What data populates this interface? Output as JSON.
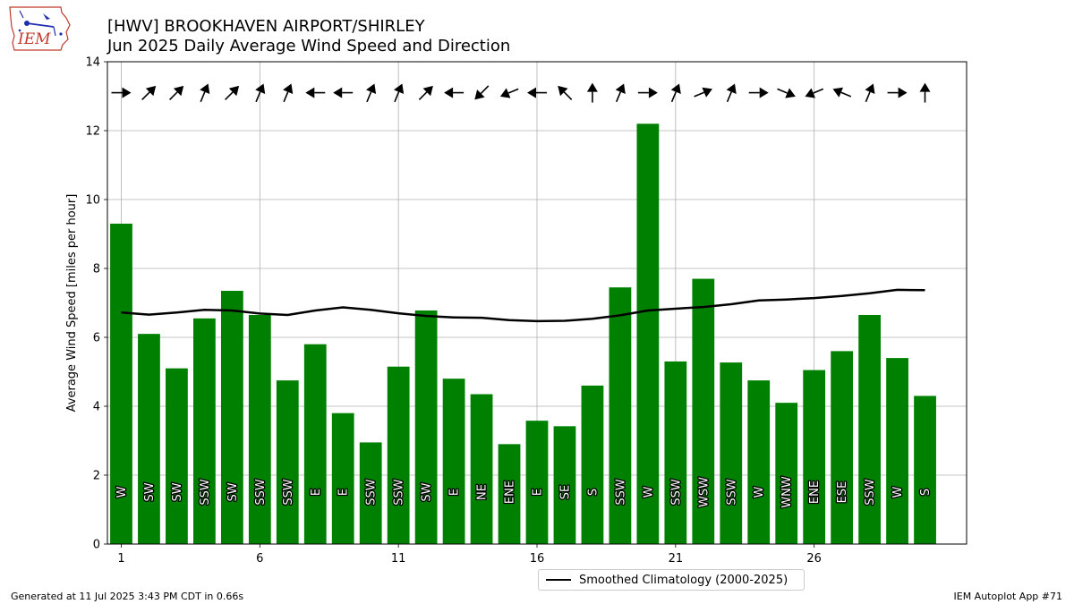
{
  "logo": {
    "text": "IEM"
  },
  "footer": {
    "generated": "Generated at 11 Jul 2025 3:43 PM CDT in 0.66s",
    "app": "IEM Autoplot App #71"
  },
  "chart_data": {
    "type": "bar",
    "title": "[HWV] BROOKHAVEN AIRPORT/SHIRLEY",
    "subtitle": "Jun 2025 Daily Average Wind Speed and Direction",
    "xlabel": "",
    "ylabel": "Average Wind Speed [miles per hour]",
    "xlim": [
      0.5,
      31.5
    ],
    "ylim": [
      0,
      14
    ],
    "x_ticks": [
      1,
      6,
      11,
      16,
      21,
      26
    ],
    "y_ticks": [
      0,
      2,
      4,
      6,
      8,
      10,
      12,
      14
    ],
    "grid": true,
    "legend_position": "bottom-center",
    "bar_color": "#008000",
    "days": [
      1,
      2,
      3,
      4,
      5,
      6,
      7,
      8,
      9,
      10,
      11,
      12,
      13,
      14,
      15,
      16,
      17,
      18,
      19,
      20,
      21,
      22,
      23,
      24,
      25,
      26,
      27,
      28,
      29,
      30
    ],
    "values": [
      9.3,
      6.1,
      5.1,
      6.55,
      7.35,
      6.65,
      4.75,
      5.8,
      3.8,
      2.95,
      5.15,
      6.78,
      4.8,
      4.35,
      2.9,
      3.58,
      3.42,
      4.6,
      7.45,
      12.2,
      5.3,
      7.7,
      5.27,
      4.75,
      4.1,
      5.05,
      5.6,
      6.65,
      5.4,
      4.3
    ],
    "directions": [
      "W",
      "SW",
      "SW",
      "SSW",
      "SW",
      "SSW",
      "SSW",
      "E",
      "E",
      "SSW",
      "SSW",
      "SW",
      "E",
      "NE",
      "ENE",
      "E",
      "SE",
      "S",
      "SSW",
      "W",
      "SSW",
      "WSW",
      "SSW",
      "W",
      "WNW",
      "ENE",
      "ESE",
      "SSW",
      "W",
      "S"
    ],
    "direction_degrees": [
      270,
      225,
      225,
      202.5,
      225,
      202.5,
      202.5,
      90,
      90,
      202.5,
      202.5,
      225,
      90,
      45,
      67.5,
      90,
      135,
      180,
      202.5,
      270,
      202.5,
      247.5,
      202.5,
      270,
      292.5,
      67.5,
      112.5,
      202.5,
      270,
      180
    ],
    "series": [
      {
        "name": "Smoothed Climatology (2000-2025)",
        "type": "line",
        "color": "#000000",
        "values": [
          6.72,
          6.66,
          6.72,
          6.8,
          6.78,
          6.69,
          6.65,
          6.78,
          6.87,
          6.8,
          6.7,
          6.62,
          6.58,
          6.57,
          6.5,
          6.47,
          6.48,
          6.54,
          6.64,
          6.78,
          6.83,
          6.88,
          6.96,
          7.07,
          7.1,
          7.14,
          7.2,
          7.28,
          7.38,
          7.37
        ]
      }
    ]
  }
}
